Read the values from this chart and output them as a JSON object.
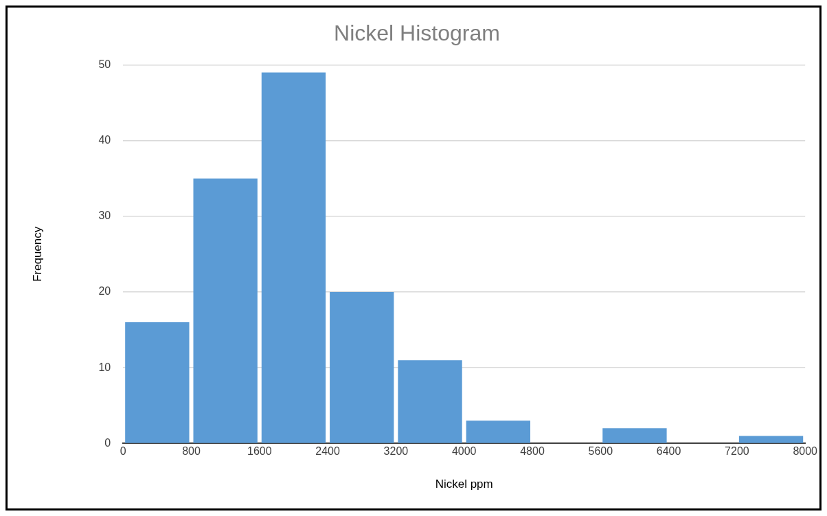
{
  "chart_data": {
    "type": "histogram",
    "title": "Nickel Histogram",
    "xlabel": "Nickel ppm",
    "ylabel": "Frequency",
    "bins": [
      0,
      800,
      1600,
      2400,
      3200,
      4000,
      4800,
      5600,
      6400,
      7200,
      8000
    ],
    "values": [
      16,
      35,
      49,
      20,
      11,
      3,
      0,
      2,
      0,
      1
    ],
    "color": "#5b9bd5",
    "xlim": [
      0,
      8000
    ],
    "xticks": [
      0,
      800,
      1600,
      2400,
      3200,
      4000,
      4800,
      5600,
      6400,
      7200,
      8000
    ],
    "ylim": [
      0,
      50
    ],
    "yticks": [
      0,
      10,
      20,
      30,
      40,
      50
    ],
    "grid": "y",
    "legend": false
  }
}
